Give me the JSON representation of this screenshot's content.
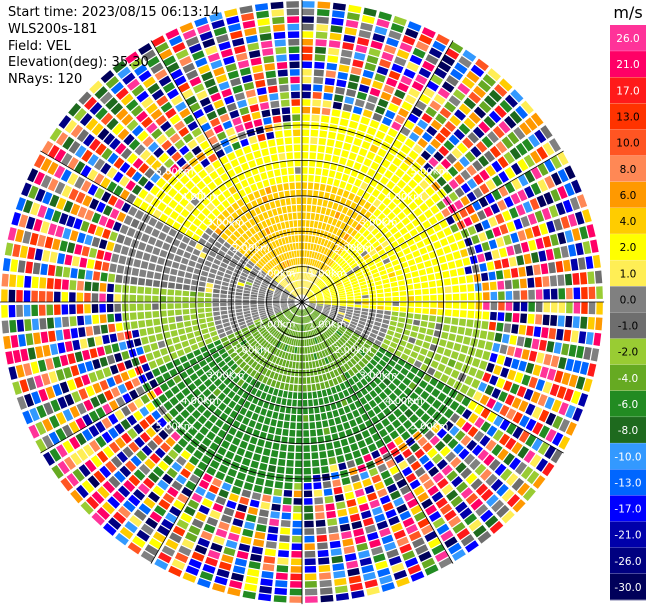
{
  "header": {
    "start_time": "Start time: 2023/08/15 06:13:14",
    "instrument": "WLS200s-181",
    "field": "Field: VEL",
    "elevation": "Elevation(deg): 35.30",
    "nrays": "NRays: 120"
  },
  "chart_data": {
    "type": "heatmap",
    "projection": "polar-ppi",
    "nrays": 120,
    "range_rings_km": [
      1,
      2,
      3,
      4,
      5
    ],
    "range_ring_labels": [
      "1.00km",
      "2.00km",
      "3.00km",
      "4.00km",
      "5.00km"
    ],
    "colorbar": {
      "unit": "m/s",
      "tick_labels": [
        "26.0",
        "21.0",
        "17.0",
        "13.0",
        "10.0",
        "8.0",
        "6.0",
        "4.0",
        "2.0",
        "1.0",
        "0.0",
        "-1.0",
        "-2.0",
        "-4.0",
        "-6.0",
        "-8.0",
        "-10.0",
        "-13.0",
        "-17.0",
        "-21.0",
        "-26.0",
        "-30.0"
      ],
      "colors": [
        "#ff3399",
        "#ff0066",
        "#ff1a1a",
        "#ff3300",
        "#ff5522",
        "#ff8855",
        "#ff9900",
        "#ffcc00",
        "#ffff00",
        "#ffee55",
        "#808080",
        "#6e6e6e",
        "#99cc33",
        "#66aa22",
        "#228b22",
        "#1e6a1e",
        "#3399ff",
        "#0066ff",
        "#0000ff",
        "#0000aa",
        "#000080",
        "#00005a"
      ]
    },
    "velocity_zones": [
      {
        "region": "inner north",
        "range_km": [
          0,
          2.6
        ],
        "value_ms": 4.0
      },
      {
        "region": "inner northeast",
        "range_km": [
          0,
          3.0
        ],
        "value_ms": 2.0
      },
      {
        "region": "inner south",
        "range_km": [
          0,
          2.6
        ],
        "value_ms": -6.0
      },
      {
        "region": "inner west",
        "range_km": [
          0,
          2.6
        ],
        "value_ms": 0.0
      },
      {
        "region": "inner east",
        "range_km": [
          0,
          2.6
        ],
        "value_ms": -1.0
      },
      {
        "region": "outer",
        "range_km": [
          3.0,
          5.5
        ],
        "value_ms": "noise"
      }
    ]
  }
}
